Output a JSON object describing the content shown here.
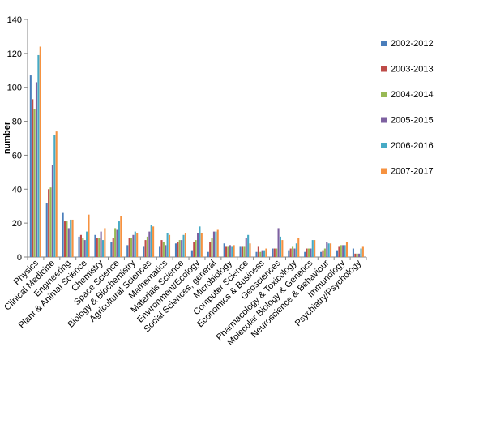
{
  "chart_data": {
    "type": "bar",
    "ylabel": "number",
    "ylim": [
      0,
      140
    ],
    "yticks": [
      0,
      20,
      40,
      60,
      80,
      100,
      120,
      140
    ],
    "grid": false,
    "legend_position": "right",
    "categories": [
      "Physics",
      "Clinical Medicine",
      "Engineering",
      "Plant & Animal Science",
      "Chemistry",
      "Space Science",
      "Biology & Biochemistry",
      "Agricultural Sciences",
      "Mathematics",
      "Materials Science",
      "Environment/Ecology",
      "Social Sciences, general",
      "Microbiology",
      "Computer Science",
      "Economics & Business",
      "Geosciences",
      "Pharmacology & Toxicology",
      "Molecular Biology & Genetics",
      "Neuroscience & Behaviour",
      "Immunology",
      "Psychiatry/Psychology"
    ],
    "series": [
      {
        "name": "2002-2012",
        "color": "#4a7ebb",
        "values": [
          107,
          32,
          26,
          12,
          13,
          9,
          7,
          6,
          6,
          8,
          4,
          3,
          8,
          6,
          3,
          5,
          4,
          3,
          3,
          4,
          5
        ]
      },
      {
        "name": "2003-2013",
        "color": "#be4b48",
        "values": [
          93,
          40,
          21,
          13,
          11,
          11,
          11,
          10,
          10,
          9,
          9,
          9,
          6,
          6,
          6,
          5,
          5,
          5,
          4,
          6,
          2
        ]
      },
      {
        "name": "2004-2014",
        "color": "#98b954",
        "values": [
          87,
          41,
          21,
          11,
          11,
          17,
          11,
          12,
          9,
          10,
          10,
          11,
          6,
          6,
          3,
          5,
          6,
          5,
          5,
          7,
          2
        ]
      },
      {
        "name": "2005-2015",
        "color": "#7d60a0",
        "values": [
          103,
          54,
          17,
          10,
          15,
          16,
          13,
          15,
          7,
          10,
          14,
          15,
          7,
          11,
          4,
          17,
          5,
          5,
          9,
          7,
          2
        ]
      },
      {
        "name": "2006-2016",
        "color": "#46aac5",
        "values": [
          119,
          72,
          22,
          15,
          10,
          21,
          15,
          19,
          14,
          13,
          18,
          15,
          6,
          13,
          4,
          12,
          8,
          10,
          8,
          7,
          5
        ]
      },
      {
        "name": "2007-2017",
        "color": "#f69240",
        "values": [
          124,
          74,
          22,
          25,
          17,
          24,
          14,
          18,
          13,
          14,
          14,
          16,
          7,
          8,
          5,
          10,
          11,
          10,
          8,
          9,
          6
        ]
      }
    ]
  }
}
